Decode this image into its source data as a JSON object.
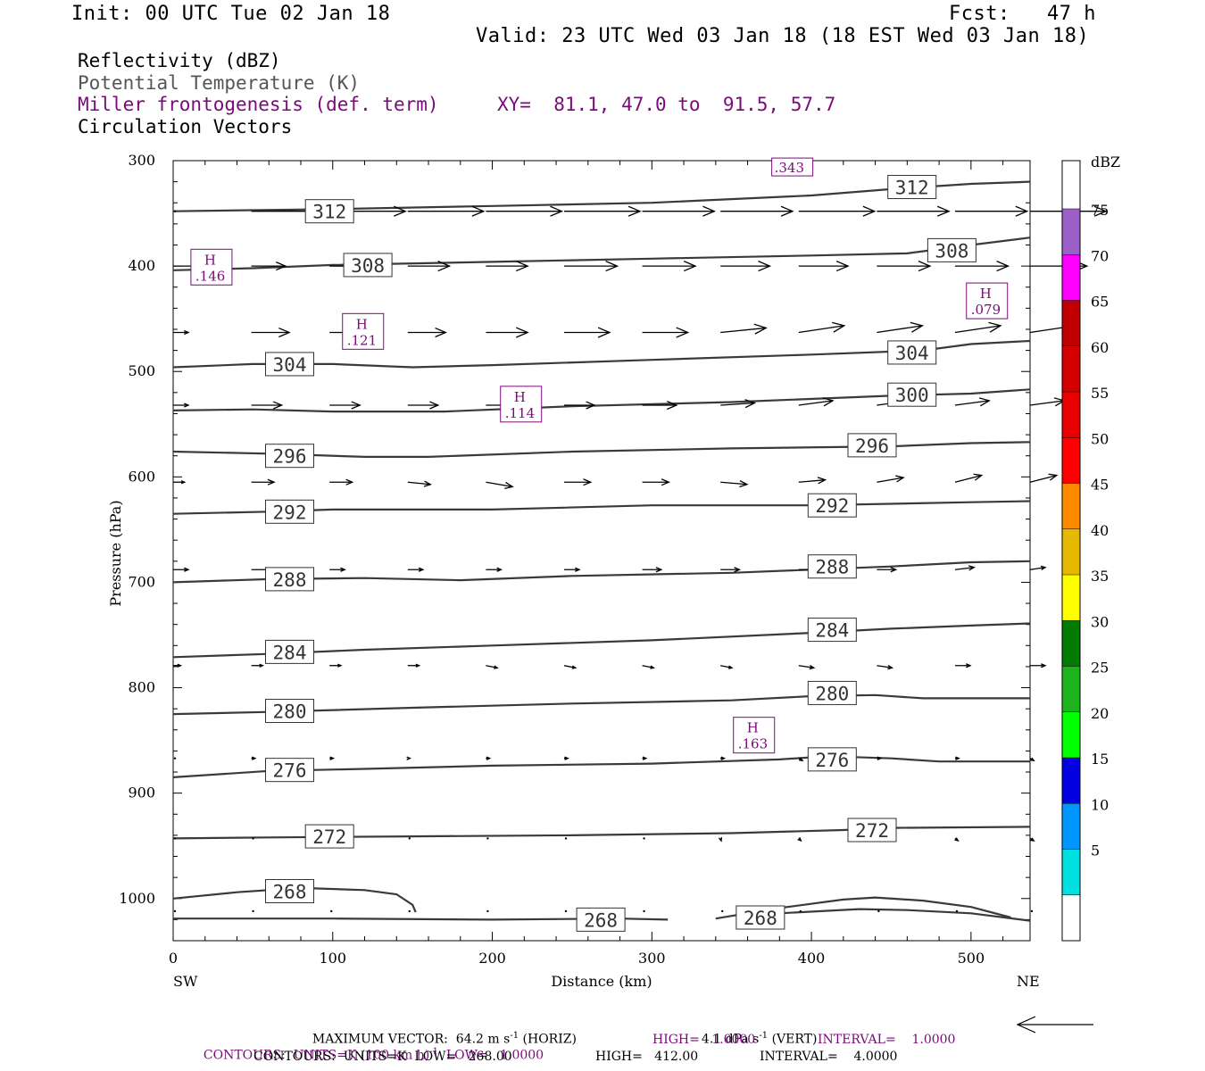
{
  "header": {
    "init": "Init: 00 UTC Tue 02 Jan 18",
    "fcst": "Fcst:   47 h",
    "valid": "Valid: 23 UTC Wed 03 Jan 18 (18 EST Wed 03 Jan 18)"
  },
  "legend": {
    "reflectivity": "Reflectivity (dBZ)",
    "theta": "Potential Temperature (K)",
    "miller": "Miller frontogenesis (def. term)",
    "xy": "XY=  81.1, 47.0 to  91.5, 57.7",
    "circulation": "Circulation Vectors"
  },
  "colors": {
    "purple": "#7a0a7a",
    "contour": "#3a3a3a",
    "vector": "#000000"
  },
  "chart_data": {
    "type": "cross-section",
    "xlabel": "Distance (km)",
    "ylabel": "Pressure (hPa)",
    "xlim": [
      0,
      537
    ],
    "ylim": [
      300,
      1040
    ],
    "x_ticks": [
      0,
      100,
      200,
      300,
      400,
      500
    ],
    "y_ticks": [
      300,
      400,
      500,
      600,
      700,
      800,
      900,
      1000
    ],
    "x_end_labels": {
      "left": "SW",
      "right": "NE"
    },
    "colorbar": {
      "unit": "dBZ",
      "levels": [
        {
          "value": "75",
          "color": "#9b5fc8"
        },
        {
          "value": "70",
          "color": "#ff00ff"
        },
        {
          "value": "65",
          "color": "#c00000"
        },
        {
          "value": "60",
          "color": "#d40000"
        },
        {
          "value": "55",
          "color": "#e80000"
        },
        {
          "value": "50",
          "color": "#ff0000"
        },
        {
          "value": "45",
          "color": "#ff8c00"
        },
        {
          "value": "40",
          "color": "#e6b800"
        },
        {
          "value": "35",
          "color": "#ffff00"
        },
        {
          "value": "30",
          "color": "#007a00"
        },
        {
          "value": "25",
          "color": "#1eb41e"
        },
        {
          "value": "20",
          "color": "#00ff00"
        },
        {
          "value": "15",
          "color": "#0000e0"
        },
        {
          "value": "10",
          "color": "#0096ff"
        },
        {
          "value": "5",
          "color": "#00e0e0"
        },
        {
          "value": "",
          "color": "#ffffff"
        }
      ]
    },
    "theta_contours": [
      {
        "label": "312",
        "points": [
          [
            0,
            348
          ],
          [
            100,
            346
          ],
          [
            200,
            343
          ],
          [
            300,
            340
          ],
          [
            400,
            333
          ],
          [
            450,
            327
          ],
          [
            500,
            322
          ],
          [
            537,
            320
          ]
        ]
      },
      {
        "label": "308",
        "points": [
          [
            0,
            404
          ],
          [
            50,
            402
          ],
          [
            100,
            399
          ],
          [
            200,
            396
          ],
          [
            300,
            393
          ],
          [
            400,
            390
          ],
          [
            460,
            388
          ],
          [
            500,
            380
          ],
          [
            537,
            373
          ]
        ]
      },
      {
        "label": "304",
        "points": [
          [
            0,
            496
          ],
          [
            50,
            493
          ],
          [
            100,
            493
          ],
          [
            150,
            496
          ],
          [
            200,
            494
          ],
          [
            300,
            489
          ],
          [
            400,
            484
          ],
          [
            470,
            480
          ],
          [
            500,
            474
          ],
          [
            537,
            471
          ]
        ]
      },
      {
        "label": "300",
        "points": [
          [
            0,
            537
          ],
          [
            50,
            536
          ],
          [
            100,
            538
          ],
          [
            170,
            538
          ],
          [
            250,
            533
          ],
          [
            350,
            529
          ],
          [
            450,
            523
          ],
          [
            500,
            521
          ],
          [
            537,
            517
          ]
        ]
      },
      {
        "label": "296",
        "points": [
          [
            0,
            576
          ],
          [
            60,
            578
          ],
          [
            120,
            581
          ],
          [
            160,
            581
          ],
          [
            250,
            576
          ],
          [
            350,
            573
          ],
          [
            450,
            571
          ],
          [
            500,
            568
          ],
          [
            537,
            567
          ]
        ]
      },
      {
        "label": "292",
        "points": [
          [
            0,
            635
          ],
          [
            60,
            633
          ],
          [
            100,
            631
          ],
          [
            200,
            631
          ],
          [
            300,
            627
          ],
          [
            400,
            627
          ],
          [
            500,
            624
          ],
          [
            537,
            623
          ]
        ]
      },
      {
        "label": "288",
        "points": [
          [
            0,
            700
          ],
          [
            60,
            697
          ],
          [
            120,
            696
          ],
          [
            180,
            698
          ],
          [
            250,
            694
          ],
          [
            350,
            691
          ],
          [
            450,
            685
          ],
          [
            500,
            681
          ],
          [
            537,
            680
          ]
        ]
      },
      {
        "label": "284",
        "points": [
          [
            0,
            771
          ],
          [
            60,
            768
          ],
          [
            120,
            764
          ],
          [
            200,
            760
          ],
          [
            300,
            755
          ],
          [
            400,
            748
          ],
          [
            450,
            744
          ],
          [
            500,
            741
          ],
          [
            537,
            739
          ]
        ]
      },
      {
        "label": "280",
        "points": [
          [
            0,
            825
          ],
          [
            60,
            823
          ],
          [
            150,
            819
          ],
          [
            250,
            815
          ],
          [
            350,
            812
          ],
          [
            400,
            808
          ],
          [
            440,
            807
          ],
          [
            470,
            810
          ],
          [
            537,
            810
          ]
        ]
      },
      {
        "label": "276",
        "points": [
          [
            0,
            885
          ],
          [
            60,
            879
          ],
          [
            120,
            877
          ],
          [
            200,
            874
          ],
          [
            300,
            872
          ],
          [
            380,
            868
          ],
          [
            410,
            865
          ],
          [
            450,
            867
          ],
          [
            480,
            870
          ],
          [
            537,
            870
          ]
        ]
      },
      {
        "label": "272",
        "points": [
          [
            0,
            943
          ],
          [
            60,
            942
          ],
          [
            150,
            941
          ],
          [
            250,
            940
          ],
          [
            350,
            938
          ],
          [
            420,
            935
          ],
          [
            450,
            933
          ],
          [
            537,
            932
          ]
        ]
      },
      {
        "label": "268",
        "points": [
          [
            0,
            1000
          ],
          [
            40,
            994
          ],
          [
            80,
            990
          ],
          [
            120,
            992
          ],
          [
            140,
            996
          ],
          [
            150,
            1006
          ],
          [
            152,
            1013
          ]
        ]
      },
      {
        "label": "268",
        "points": [
          [
            0,
            1019
          ],
          [
            100,
            1019
          ],
          [
            200,
            1020
          ],
          [
            280,
            1019
          ],
          [
            310,
            1020
          ]
        ]
      },
      {
        "label": "268",
        "points": [
          [
            340,
            1019
          ],
          [
            380,
            1009
          ],
          [
            420,
            1001
          ],
          [
            440,
            999
          ],
          [
            470,
            1002
          ],
          [
            500,
            1008
          ],
          [
            525,
            1018
          ]
        ]
      },
      {
        "label": "",
        "points": [
          [
            380,
            1014
          ],
          [
            430,
            1010
          ],
          [
            460,
            1011
          ],
          [
            500,
            1014
          ],
          [
            537,
            1021
          ]
        ]
      }
    ],
    "contour_labels": [
      {
        "text": "312",
        "x": 98,
        "p": 348
      },
      {
        "text": "308",
        "x": 122,
        "p": 399
      },
      {
        "text": "304",
        "x": 73,
        "p": 493
      },
      {
        "text": "300",
        "x": 463,
        "p": 522
      },
      {
        "text": "296",
        "x": 73,
        "p": 580
      },
      {
        "text": "292",
        "x": 73,
        "p": 633
      },
      {
        "text": "288",
        "x": 73,
        "p": 697
      },
      {
        "text": "284",
        "x": 73,
        "p": 766
      },
      {
        "text": "280",
        "x": 73,
        "p": 822
      },
      {
        "text": "276",
        "x": 73,
        "p": 878
      },
      {
        "text": "272",
        "x": 98,
        "p": 941
      },
      {
        "text": "268",
        "x": 73,
        "p": 993
      },
      {
        "text": "268",
        "x": 268,
        "p": 1020
      },
      {
        "text": "268",
        "x": 368,
        "p": 1018
      },
      {
        "text": "312",
        "x": 463,
        "p": 325
      },
      {
        "text": "308",
        "x": 488,
        "p": 385
      },
      {
        "text": "304",
        "x": 463,
        "p": 482
      },
      {
        "text": "296",
        "x": 438,
        "p": 570
      },
      {
        "text": "292",
        "x": 413,
        "p": 627
      },
      {
        "text": "288",
        "x": 413,
        "p": 685
      },
      {
        "text": "284",
        "x": 413,
        "p": 745
      },
      {
        "text": "280",
        "x": 413,
        "p": 805
      },
      {
        "text": "276",
        "x": 413,
        "p": 868
      },
      {
        "text": "272",
        "x": 438,
        "p": 935
      }
    ],
    "highs": [
      {
        "label": "H",
        "value": ".146",
        "x": 24,
        "p": 401
      },
      {
        "label": "H",
        "value": ".121",
        "x": 119,
        "p": 462
      },
      {
        "label": "H",
        "value": ".114",
        "x": 218,
        "p": 531
      },
      {
        "label": "H",
        "value": ".079",
        "x": 510,
        "p": 433
      },
      {
        "label": "H",
        "value": ".163",
        "x": 364,
        "p": 845
      },
      {
        "label": "",
        "value": ".343",
        "x": 388,
        "p": 306
      }
    ],
    "vector_rows": [
      {
        "p": 348,
        "u": [
          0,
          1.0,
          1.0,
          1.0,
          1.0,
          1.0,
          0.95,
          0.95,
          1.0,
          0.95,
          0.95,
          1.0
        ],
        "w": [
          0,
          0,
          0,
          0,
          0,
          0,
          0,
          0,
          0,
          0,
          0,
          0
        ]
      },
      {
        "p": 400,
        "u": [
          0.4,
          0.45,
          0.45,
          0.55,
          0.55,
          0.7,
          0.7,
          0.65,
          0.65,
          0.7,
          0.7,
          0.75
        ],
        "w": [
          0,
          0,
          0,
          0,
          0,
          0,
          0,
          0,
          0,
          0,
          0,
          0
        ]
      },
      {
        "p": 463,
        "u": [
          0.2,
          0.5,
          0.5,
          0.5,
          0.55,
          0.6,
          0.6,
          0.6,
          0.6,
          0.6,
          0.6,
          0.6
        ],
        "w": [
          0,
          0,
          0,
          0,
          0,
          0,
          0,
          0.02,
          0.03,
          0.03,
          0.03,
          0.03
        ]
      },
      {
        "p": 532,
        "u": [
          0.2,
          0.4,
          0.4,
          0.4,
          0.4,
          0.4,
          0.45,
          0.45,
          0.45,
          0.45,
          0.45,
          0.45
        ],
        "w": [
          0,
          0,
          0,
          0,
          0,
          0,
          0,
          0.01,
          0.02,
          0.02,
          0.02,
          0.02
        ]
      },
      {
        "p": 605,
        "u": [
          0.15,
          0.3,
          0.3,
          0.3,
          0.35,
          0.35,
          0.35,
          0.35,
          0.35,
          0.35,
          0.35,
          0.35
        ],
        "w": [
          0,
          0,
          0,
          -0.01,
          -0.02,
          0,
          0,
          -0.01,
          0.01,
          0.02,
          0.03,
          0.03
        ]
      },
      {
        "p": 688,
        "u": [
          0.2,
          0.25,
          0.2,
          0.2,
          0.2,
          0.2,
          0.25,
          0.25,
          0.25,
          0.25,
          0.25,
          0.2
        ],
        "w": [
          0,
          0,
          0,
          0,
          0,
          0,
          0,
          0,
          0,
          0,
          0.01,
          0.01
        ]
      },
      {
        "p": 779,
        "u": [
          0.1,
          0.15,
          0.15,
          0.15,
          0.15,
          0.15,
          0.15,
          0.15,
          0.2,
          0.2,
          0.2,
          0.2
        ],
        "w": [
          0,
          0,
          0,
          0,
          -0.01,
          -0.01,
          -0.01,
          -0.01,
          -0.01,
          -0.01,
          0,
          0
        ]
      },
      {
        "p": 867,
        "u": [
          0,
          0.05,
          0.05,
          0.03,
          0.05,
          0.05,
          0.05,
          0.05,
          0.05,
          0.05,
          0.05,
          0.05
        ],
        "w": [
          0,
          0,
          0,
          0,
          0,
          0,
          0,
          0,
          -0.01,
          0,
          0,
          -0.01
        ]
      },
      {
        "p": 943,
        "u": [
          0,
          0.01,
          0.01,
          0.01,
          0.01,
          0.01,
          0.01,
          0.01,
          0.03,
          0.04,
          0.04,
          0.05
        ],
        "w": [
          0,
          0,
          0,
          0,
          0,
          0,
          0,
          -0.01,
          -0.01,
          -0.01,
          -0.01,
          -0.01
        ]
      },
      {
        "p": 1012,
        "u": [
          0,
          0.01,
          0.01,
          0.01,
          0.01,
          0.01,
          0.01,
          0.01,
          0.01,
          0.01,
          0.01,
          0.01
        ],
        "w": [
          0,
          0,
          0,
          0,
          0,
          0,
          0,
          0,
          0,
          0,
          0,
          0
        ]
      }
    ],
    "vector_x": [
      0,
      49,
      98,
      147,
      196,
      245,
      294,
      343,
      392,
      441,
      490,
      537
    ]
  },
  "footer": {
    "max_vector": "MAXIMUM VECTOR:  64.2 m s",
    "max_vector_exp": "-1",
    "max_vector_horiz": "(HORIZ)",
    "max_vector_vert": "4.1 dPa s",
    "max_vector_vert_exp": "-1",
    "max_vector_vert_tail": "(VERT)",
    "contours1_a": "CONTOURS:  UNITS=K (100 km h)",
    "contours1_exp": "-1",
    "contours1_b": "LOW=   1.0000",
    "contours1_c": "HIGH=   1.0000",
    "contours1_d": "INTERVAL=    1.0000",
    "contours2_a": "CONTOURS:  UNITS=K  LOW=   268.00",
    "contours2_b": "HIGH=   412.00",
    "contours2_c": "INTERVAL=    4.0000"
  }
}
